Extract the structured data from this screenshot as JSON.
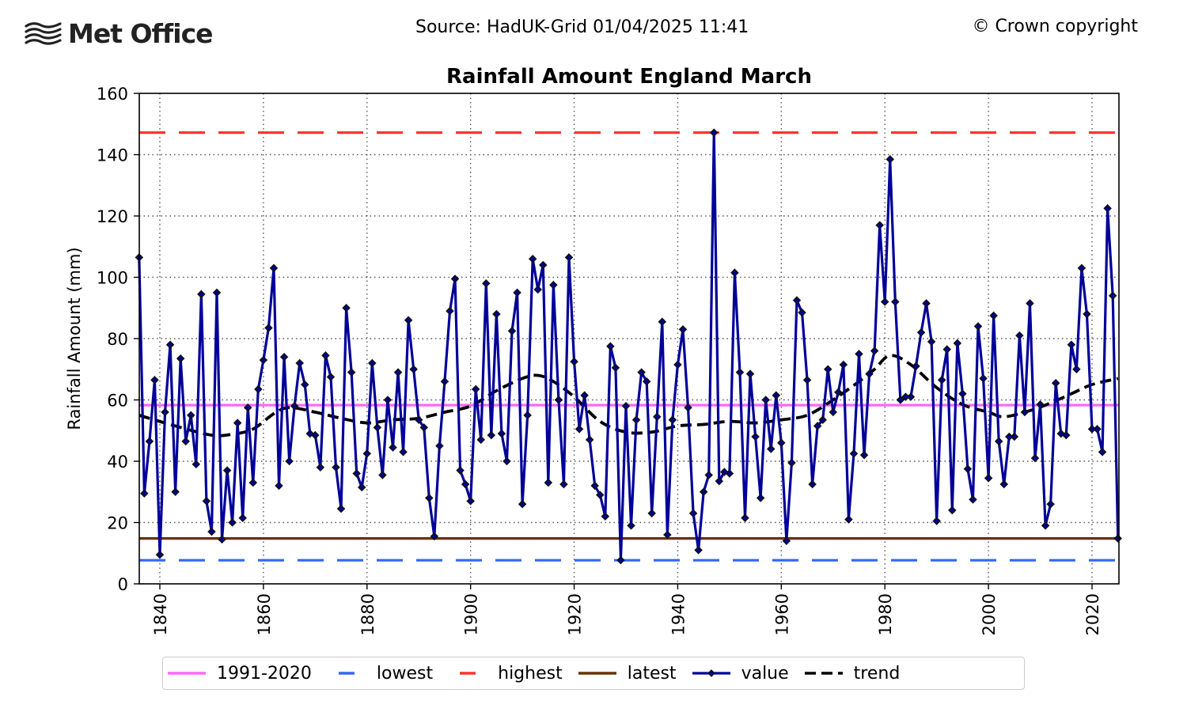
{
  "header": {
    "logo_text": "Met Office",
    "source": "Source: HadUK-Grid 01/04/2025 11:41",
    "copyright": "© Crown copyright"
  },
  "chart_data": {
    "type": "line",
    "title": "Rainfall Amount England March",
    "xlabel": "",
    "ylabel": "Rainfall Amount (mm)",
    "xlim": [
      1836,
      2025
    ],
    "ylim": [
      0,
      160
    ],
    "x_ticks": [
      1840,
      1860,
      1880,
      1900,
      1920,
      1940,
      1960,
      1980,
      2000,
      2020
    ],
    "y_ticks": [
      0,
      20,
      40,
      60,
      80,
      100,
      120,
      140,
      160
    ],
    "grid": true,
    "legend_position": "bottom-center",
    "reference_lines": [
      {
        "name": "1991-2020",
        "value": 58.3,
        "color": "#ff66ff",
        "style": "solid"
      },
      {
        "name": "lowest",
        "value": 7.7,
        "color": "#3366ff",
        "style": "dashed"
      },
      {
        "name": "highest",
        "value": 147.2,
        "color": "#ff3333",
        "style": "dashed"
      },
      {
        "name": "latest",
        "value": 14.8,
        "color": "#663300",
        "style": "solid"
      }
    ],
    "series": [
      {
        "name": "value",
        "color": "#000099",
        "marker": "diamond",
        "start_year": 1836,
        "values": [
          106.5,
          29.5,
          46.5,
          66.5,
          9.5,
          56,
          78,
          30,
          73.5,
          46.5,
          55,
          39,
          94.5,
          27,
          17,
          95,
          14.5,
          37,
          20,
          52.5,
          21.5,
          57.5,
          33,
          63.5,
          73,
          83.5,
          103,
          32,
          74,
          40,
          58,
          72,
          65,
          49,
          48.5,
          38,
          74.5,
          67.5,
          38,
          24.5,
          90,
          69,
          36,
          31.5,
          42.5,
          72,
          51,
          35.5,
          60,
          44.5,
          69,
          43,
          86,
          70,
          53.5,
          51,
          28,
          15.5,
          45,
          66,
          89,
          99.5,
          37,
          32.5,
          27,
          63.5,
          47,
          98,
          48.5,
          88,
          49,
          40,
          82.5,
          95,
          26,
          55,
          106,
          96,
          104,
          33,
          97.5,
          60,
          32.5,
          106.5,
          72.5,
          50.5,
          61.5,
          47,
          32,
          29,
          22,
          77.5,
          70.5,
          7.7,
          58,
          19,
          53.5,
          69,
          66,
          23,
          54.5,
          85.5,
          16,
          53.5,
          71.5,
          83,
          57.5,
          23,
          11,
          30,
          35.5,
          147.2,
          33.5,
          36.5,
          36,
          101.5,
          69,
          21.5,
          68.5,
          48,
          28,
          60,
          44,
          61.5,
          46,
          14,
          39.5,
          92.5,
          88.5,
          66.5,
          32.5,
          51.5,
          53.5,
          70,
          56,
          62.5,
          71.5,
          21,
          42.5,
          75,
          42,
          68.5,
          76,
          117,
          92,
          138.5,
          92,
          60,
          61,
          61,
          71,
          82,
          91.5,
          79,
          20.5,
          66.5,
          76.5,
          24,
          78.5,
          62,
          37.5,
          27.5,
          84,
          67,
          34.5,
          87.5,
          46.5,
          32.5,
          48,
          48,
          81,
          56,
          91.5,
          41,
          58.5,
          19,
          26,
          65.5,
          49,
          48.5,
          78,
          70,
          103,
          88,
          50.5,
          50.5,
          43,
          122.5,
          94,
          14.8
        ]
      },
      {
        "name": "trend",
        "color": "#000000",
        "style": "dashed",
        "points": [
          [
            1836,
            55
          ],
          [
            1843,
            51.5
          ],
          [
            1850,
            48.5
          ],
          [
            1854,
            48.8
          ],
          [
            1858,
            50.5
          ],
          [
            1862,
            55.5
          ],
          [
            1865,
            57.5
          ],
          [
            1870,
            56
          ],
          [
            1875,
            54
          ],
          [
            1880,
            52.5
          ],
          [
            1885,
            53.5
          ],
          [
            1890,
            54
          ],
          [
            1895,
            56
          ],
          [
            1900,
            58
          ],
          [
            1905,
            63
          ],
          [
            1910,
            67
          ],
          [
            1913,
            68
          ],
          [
            1916,
            66
          ],
          [
            1920,
            61
          ],
          [
            1925,
            53
          ],
          [
            1930,
            49.5
          ],
          [
            1935,
            49.5
          ],
          [
            1940,
            51.5
          ],
          [
            1945,
            52
          ],
          [
            1950,
            53
          ],
          [
            1955,
            52.5
          ],
          [
            1960,
            53.5
          ],
          [
            1965,
            55
          ],
          [
            1970,
            60
          ],
          [
            1975,
            66
          ],
          [
            1978,
            70
          ],
          [
            1981,
            74.5
          ],
          [
            1985,
            71.5
          ],
          [
            1990,
            64
          ],
          [
            1995,
            58.5
          ],
          [
            2000,
            56
          ],
          [
            2003,
            54.5
          ],
          [
            2008,
            56.5
          ],
          [
            2012,
            59
          ],
          [
            2016,
            62
          ],
          [
            2020,
            65
          ],
          [
            2025,
            67
          ]
        ]
      }
    ]
  },
  "legend": {
    "items": [
      {
        "label": "1991-2020",
        "color": "#ff66ff",
        "style": "solid"
      },
      {
        "label": "lowest",
        "color": "#3366ff",
        "style": "dashed"
      },
      {
        "label": "highest",
        "color": "#ff3333",
        "style": "dashed"
      },
      {
        "label": "latest",
        "color": "#663300",
        "style": "solid"
      },
      {
        "label": "value",
        "color": "#000099",
        "style": "marker"
      },
      {
        "label": "trend",
        "color": "#000000",
        "style": "dashed"
      }
    ]
  }
}
